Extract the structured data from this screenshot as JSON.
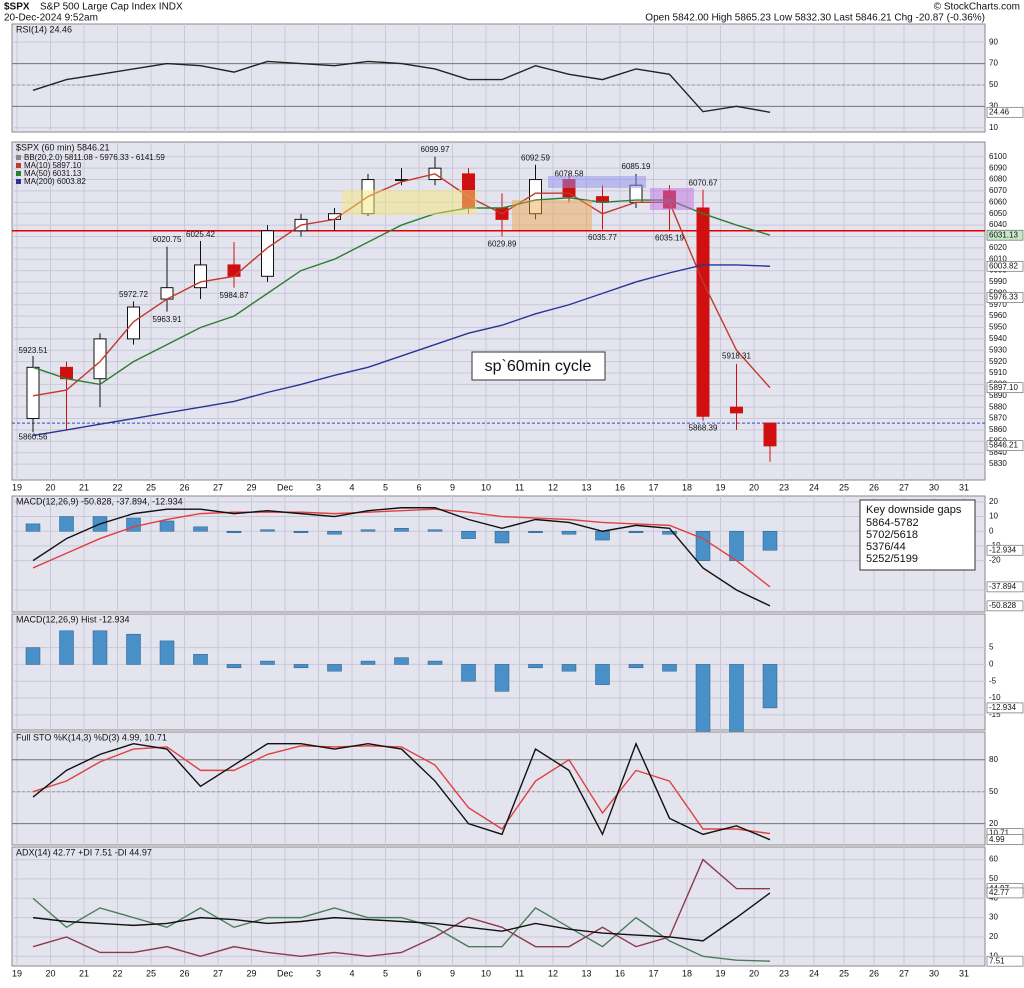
{
  "header": {
    "symbol": "$SPX",
    "name": "S&P 500 Large Cap Index INDX",
    "datetime": "20-Dec-2024 9:52am",
    "quote": "Open 5842.00 High 5865.23 Low 5832.30 Last 5846.21 Chg -20.87 (-0.36%)",
    "copyright": "© StockCharts.com"
  },
  "note": "sp`60min cycle",
  "gaps": {
    "title": "Key downside gaps",
    "items": [
      "5864-5782",
      "5702/5618",
      "5376/44",
      "5252/5199"
    ]
  },
  "chart_data": [
    {
      "type": "line",
      "title": "RSI(14) 24.46",
      "ylim": [
        6,
        107
      ],
      "yticks": [
        90,
        70,
        50,
        30,
        10
      ],
      "hlines": [
        {
          "value": 70,
          "color": "#777"
        },
        {
          "value": 50,
          "color": "#999",
          "dash": true
        },
        {
          "value": 30,
          "color": "#777"
        }
      ],
      "series": [
        {
          "name": "RSI",
          "color": "#222",
          "values": [
            45,
            55,
            60,
            65,
            70,
            68,
            62,
            72,
            70,
            68,
            72,
            70,
            65,
            55,
            55,
            68,
            60,
            55,
            65,
            60,
            25,
            30,
            24.46,
            null,
            null,
            null,
            null,
            null,
            null,
            null
          ]
        }
      ],
      "tags": [
        24.46
      ],
      "tag_colors": [
        "#fff"
      ]
    },
    {
      "type": "candlestick",
      "title": "$SPX (60 min) 5846.21",
      "ylim": [
        5816,
        6113
      ],
      "yticks": [
        6100,
        6090,
        6080,
        6070,
        6060,
        6050,
        6040,
        6030,
        6020,
        6010,
        6000,
        5990,
        5980,
        5970,
        5960,
        5950,
        5940,
        5930,
        5920,
        5910,
        5900,
        5890,
        5880,
        5870,
        5860,
        5850,
        5840,
        5830
      ],
      "categories": [
        "19",
        "20",
        "21",
        "22",
        "25",
        "26",
        "27",
        "29",
        "Dec",
        "3",
        "4",
        "5",
        "6",
        "9",
        "10",
        "11",
        "12",
        "13",
        "16",
        "17",
        "18",
        "19",
        "20",
        "23",
        "24",
        "25",
        "26",
        "27",
        "30",
        "31"
      ],
      "legend": [
        {
          "text": "BB(20,2.0) 5811.08 - 5976.33 - 6141.59",
          "color": "#888"
        },
        {
          "text": "MA(10) 5897.10",
          "color": "#c0392b"
        },
        {
          "text": "MA(50) 6031.13",
          "color": "#2e7d32"
        },
        {
          "text": "MA(200) 6003.82",
          "color": "#283593"
        }
      ],
      "open": [
        5870,
        5915,
        5905,
        5940,
        5975,
        5985,
        6005,
        5995,
        6035,
        6045,
        6050,
        6080,
        6080,
        6085,
        6055,
        6050,
        6080,
        6065,
        6060,
        6070,
        6055,
        5880,
        5866,
        null,
        null,
        null,
        null,
        null,
        null,
        null
      ],
      "high": [
        5925,
        5920,
        5945,
        5973,
        6021,
        6026,
        6025,
        6040,
        6050,
        6055,
        6085,
        6090,
        6100,
        6090,
        6068,
        6093,
        6085,
        6075,
        6085,
        6075,
        6071,
        5918,
        5866,
        null,
        null,
        null,
        null,
        null,
        null,
        null
      ],
      "low": [
        5858,
        5860,
        5880,
        5935,
        5964,
        5975,
        5985,
        5990,
        6030,
        6035,
        6048,
        6075,
        6075,
        6050,
        6030,
        6045,
        6060,
        6036,
        6055,
        6035,
        5868,
        5860,
        5832,
        null,
        null,
        null,
        null,
        null,
        null,
        null
      ],
      "close": [
        5915,
        5905,
        5940,
        5968,
        5985,
        6005,
        5995,
        6035,
        6045,
        6050,
        6080,
        6080,
        6090,
        6055,
        6045,
        6080,
        6065,
        6060,
        6075,
        6055,
        5872,
        5875,
        5846,
        null,
        null,
        null,
        null,
        null,
        null,
        null
      ],
      "series": [
        {
          "name": "MA(10)",
          "color": "#c0392b",
          "values": [
            5890,
            5895,
            5920,
            5955,
            5975,
            5990,
            5995,
            6020,
            6040,
            6045,
            6065,
            6078,
            6085,
            6065,
            6050,
            6068,
            6068,
            6050,
            6060,
            6060,
            5990,
            5930,
            5897.1,
            null,
            null,
            null,
            null,
            null,
            null,
            null
          ]
        },
        {
          "name": "MA(50)",
          "color": "#2e7d32",
          "values": [
            5915,
            5905,
            5900,
            5920,
            5935,
            5950,
            5960,
            5980,
            6000,
            6010,
            6025,
            6040,
            6050,
            6055,
            6055,
            6062,
            6064,
            6060,
            6062,
            6062,
            6050,
            6040,
            6031.13,
            null,
            null,
            null,
            null,
            null,
            null,
            null
          ]
        },
        {
          "name": "MA(200)",
          "color": "#283593",
          "values": [
            5855,
            5860,
            5865,
            5870,
            5875,
            5880,
            5885,
            5893,
            5900,
            5908,
            5915,
            5925,
            5935,
            5945,
            5952,
            5962,
            5970,
            5980,
            5990,
            5998,
            6005,
            6005,
            6003.82,
            null,
            null,
            null,
            null,
            null,
            null,
            null
          ]
        }
      ],
      "hlines": [
        {
          "value": 6035,
          "color": "#e00000"
        },
        {
          "value": 5866,
          "color": "#3344cc",
          "dash": true
        }
      ],
      "point_labels": [
        {
          "session": 0,
          "value": 5923.51
        },
        {
          "session": 0,
          "value": 5860.56
        },
        {
          "session": 3,
          "value": 5972.72
        },
        {
          "session": 4,
          "value": 5963.91
        },
        {
          "session": 4,
          "value": 6020.75
        },
        {
          "session": 5,
          "value": 6025.42
        },
        {
          "session": 6,
          "value": 5984.87
        },
        {
          "session": 12,
          "value": 6099.97
        },
        {
          "session": 14,
          "value": 6029.89
        },
        {
          "session": 15,
          "value": 6092.59
        },
        {
          "session": 16,
          "value": 6078.58
        },
        {
          "session": 17,
          "value": 6035.77
        },
        {
          "session": 18,
          "value": 6085.19
        },
        {
          "session": 19,
          "value": 6035.19
        },
        {
          "session": 20,
          "value": 6070.67
        },
        {
          "session": 20,
          "value": 5868.39
        },
        {
          "session": 21,
          "value": 5918.31
        }
      ],
      "tags": [
        6031.13,
        6003.82,
        5976.33,
        {
          "value": 5897.1,
          "label": "5897.10"
        },
        5846.21
      ],
      "tag_colors": [
        "#c8e6c9",
        "#fff",
        "#fff",
        "#fff",
        "#fff"
      ]
    },
    {
      "type": "line",
      "title": "MACD(12,26,9) -50.828, -37.894, -12.934",
      "ylim": [
        -55,
        24
      ],
      "yticks": [
        20,
        10,
        0,
        -10,
        -20,
        -40
      ],
      "series": [
        {
          "name": "Hist",
          "kind": "bar",
          "color": "#4a90c8",
          "values": [
            5,
            10,
            10,
            9,
            7,
            3,
            -1,
            1,
            -1,
            -2,
            1,
            2,
            1,
            -5,
            -8,
            -1,
            -2,
            -6,
            -1,
            -2,
            -20,
            -20,
            -12.934,
            null,
            null,
            null,
            null,
            null,
            null,
            null
          ]
        },
        {
          "name": "Signal",
          "color": "#e04040",
          "values": [
            -25,
            -15,
            -5,
            3,
            8,
            12,
            13,
            13,
            13,
            12,
            13,
            14,
            15,
            13,
            10,
            9,
            8,
            6,
            5,
            4,
            -5,
            -20,
            -37.894,
            null,
            null,
            null,
            null,
            null,
            null,
            null
          ]
        },
        {
          "name": "MACD",
          "color": "#111",
          "values": [
            -20,
            -5,
            5,
            12,
            15,
            15,
            12,
            14,
            12,
            10,
            14,
            16,
            16,
            8,
            2,
            8,
            6,
            0,
            4,
            2,
            -25,
            -40,
            -50.828,
            null,
            null,
            null,
            null,
            null,
            null,
            null
          ]
        }
      ],
      "tags": [
        -12.934,
        -37.894,
        -50.828
      ],
      "tag_colors": [
        "#fff",
        "#fff",
        "#fff"
      ]
    },
    {
      "type": "bar",
      "title": "MACD(12,26,9) Hist -12.934",
      "ylim": [
        -19.5,
        15
      ],
      "yticks": [
        5,
        0,
        -5,
        -10,
        -15
      ],
      "series": [
        {
          "name": "Hist",
          "color": "#4a90c8",
          "values": [
            5,
            10,
            10,
            9,
            7,
            3,
            -1,
            1,
            -1,
            -2,
            1,
            2,
            1,
            -5,
            -8,
            -1,
            -2,
            -6,
            -1,
            -2,
            -20,
            -20,
            -12.934,
            null,
            null,
            null,
            null,
            null,
            null,
            null
          ]
        }
      ],
      "tags": [
        -12.934
      ],
      "tag_colors": [
        "#fff"
      ]
    },
    {
      "type": "line",
      "title": "Full STO %K(14,3) %D(3) 4.99, 10.71",
      "ylim": [
        0,
        106
      ],
      "yticks": [
        80,
        50,
        20
      ],
      "hlines": [
        {
          "value": 80,
          "color": "#777"
        },
        {
          "value": 50,
          "color": "#999",
          "dash": true
        },
        {
          "value": 20,
          "color": "#777"
        }
      ],
      "series": [
        {
          "name": "%D",
          "color": "#e04040",
          "values": [
            50,
            60,
            78,
            90,
            92,
            70,
            70,
            85,
            93,
            92,
            93,
            92,
            75,
            35,
            15,
            60,
            80,
            30,
            70,
            60,
            15,
            15,
            10.71,
            null,
            null,
            null,
            null,
            null,
            null,
            null
          ]
        },
        {
          "name": "%K",
          "color": "#111",
          "values": [
            45,
            70,
            85,
            95,
            90,
            55,
            75,
            95,
            95,
            90,
            95,
            90,
            60,
            20,
            10,
            90,
            70,
            10,
            95,
            25,
            10,
            18,
            4.99,
            null,
            null,
            null,
            null,
            null,
            null,
            null
          ]
        }
      ],
      "tags": [
        10.71,
        4.99
      ],
      "tag_colors": [
        "#fff",
        "#fff"
      ]
    },
    {
      "type": "line",
      "title": "ADX(14) 42.77 +DI 7.51 -DI 44.97",
      "ylim": [
        5,
        66.5
      ],
      "yticks": [
        60,
        50,
        40,
        30,
        20,
        10
      ],
      "categories": [
        "19",
        "20",
        "21",
        "22",
        "25",
        "26",
        "27",
        "29",
        "Dec",
        "3",
        "4",
        "5",
        "6",
        "9",
        "10",
        "11",
        "12",
        "13",
        "16",
        "17",
        "18",
        "19",
        "20",
        "23",
        "24",
        "25",
        "26",
        "27",
        "30",
        "31"
      ],
      "series": [
        {
          "name": "+DI",
          "color": "#4a7c59",
          "values": [
            40,
            25,
            35,
            30,
            25,
            35,
            25,
            30,
            30,
            35,
            30,
            30,
            25,
            15,
            15,
            35,
            25,
            15,
            30,
            18,
            10,
            8,
            7.51,
            null,
            null,
            null,
            null,
            null,
            null,
            null
          ]
        },
        {
          "name": "-DI",
          "color": "#8b3a4a",
          "values": [
            15,
            20,
            12,
            12,
            15,
            10,
            15,
            12,
            10,
            12,
            10,
            12,
            20,
            30,
            25,
            15,
            15,
            25,
            15,
            20,
            60,
            45,
            44.97,
            null,
            null,
            null,
            null,
            null,
            null,
            null
          ]
        },
        {
          "name": "ADX",
          "color": "#111",
          "values": [
            30,
            28,
            27,
            26,
            27,
            30,
            29,
            27,
            28,
            30,
            29,
            28,
            27,
            25,
            23,
            27,
            24,
            22,
            21,
            20,
            18,
            30,
            42.77,
            null,
            null,
            null,
            null,
            null,
            null,
            null
          ]
        }
      ],
      "tags": [
        44.97,
        42.77,
        7.51
      ],
      "tag_colors": [
        "#fff",
        "#fff",
        "#fff"
      ]
    }
  ]
}
